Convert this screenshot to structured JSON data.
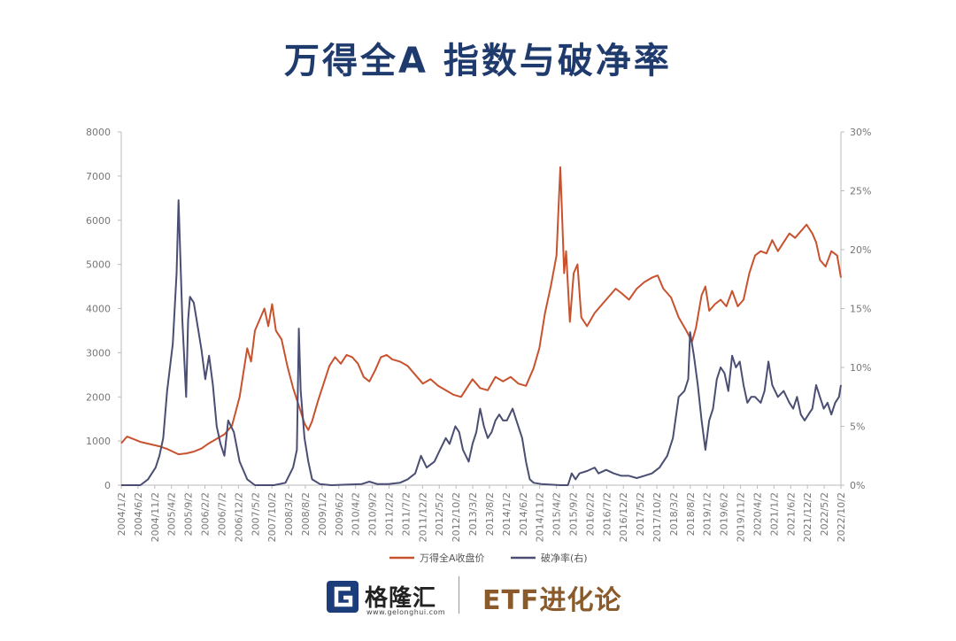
{
  "title": "万得全A 指数与破净率",
  "footer": {
    "logo_name": "格隆汇",
    "logo_url": "www.gelonghui.com",
    "brand": "ETF进化论"
  },
  "colors": {
    "index": "#c8522e",
    "ratio": "#4a4e72",
    "title": "#1f3b6e",
    "axis": "#bbbbbb",
    "brand": "#8a5a2b"
  },
  "icons": {
    "logo": "g-letter-icon"
  },
  "chart_data": {
    "type": "line",
    "title": "万得全A 指数与破净率",
    "grid": false,
    "legend_position": "bottom-center",
    "left_axis": {
      "min": 0,
      "max": 8000,
      "ticks": [
        "0",
        "1000",
        "2000",
        "3000",
        "4000",
        "5000",
        "6000",
        "7000",
        "8000"
      ]
    },
    "right_axis": {
      "min": 0,
      "max": 30,
      "ticks": [
        "0%",
        "5%",
        "10%",
        "15%",
        "20%",
        "25%",
        "30%"
      ]
    },
    "x_ticks": [
      "2004/1/2",
      "2004/6/2",
      "2004/11/2",
      "2005/4/2",
      "2005/9/2",
      "2006/2/2",
      "2006/7/2",
      "2006/12/2",
      "2007/5/2",
      "2007/10/2",
      "2008/3/2",
      "2008/8/2",
      "2009/1/2",
      "2009/6/2",
      "2010/4/2",
      "2010/9/2",
      "2011/2/2",
      "2011/7/2",
      "2011/12/2",
      "2012/5/2",
      "2012/10/2",
      "2013/3/2",
      "2013/8/2",
      "2014/1/2",
      "2014/6/2",
      "2014/11/2",
      "2015/4/2",
      "2015/9/2",
      "2016/2/2",
      "2016/7/2",
      "2016/12/2",
      "2017/5/2",
      "2017/10/2",
      "2018/3/2",
      "2018/8/2",
      "2019/1/2",
      "2019/6/2",
      "2019/11/2",
      "2020/4/2",
      "2021/1/2",
      "2021/6/2",
      "2021/12/2",
      "2022/5/2",
      "2022/10/2"
    ],
    "series": [
      {
        "name": "万得全A收盘价",
        "axis": "left",
        "points": [
          [
            2004.0,
            950
          ],
          [
            2004.15,
            1100
          ],
          [
            2004.3,
            1050
          ],
          [
            2004.5,
            980
          ],
          [
            2004.8,
            920
          ],
          [
            2005.0,
            880
          ],
          [
            2005.2,
            820
          ],
          [
            2005.4,
            740
          ],
          [
            2005.5,
            700
          ],
          [
            2005.7,
            720
          ],
          [
            2005.9,
            760
          ],
          [
            2006.1,
            830
          ],
          [
            2006.3,
            950
          ],
          [
            2006.5,
            1050
          ],
          [
            2006.7,
            1150
          ],
          [
            2006.9,
            1350
          ],
          [
            2007.1,
            2000
          ],
          [
            2007.3,
            3100
          ],
          [
            2007.4,
            2800
          ],
          [
            2007.5,
            3500
          ],
          [
            2007.65,
            3800
          ],
          [
            2007.75,
            4000
          ],
          [
            2007.85,
            3600
          ],
          [
            2007.95,
            4100
          ],
          [
            2008.05,
            3500
          ],
          [
            2008.2,
            3300
          ],
          [
            2008.35,
            2700
          ],
          [
            2008.5,
            2200
          ],
          [
            2008.65,
            1800
          ],
          [
            2008.8,
            1400
          ],
          [
            2008.9,
            1250
          ],
          [
            2009.0,
            1450
          ],
          [
            2009.15,
            1900
          ],
          [
            2009.3,
            2300
          ],
          [
            2009.45,
            2700
          ],
          [
            2009.6,
            2900
          ],
          [
            2009.75,
            2750
          ],
          [
            2009.9,
            2950
          ],
          [
            2010.05,
            2900
          ],
          [
            2010.2,
            2750
          ],
          [
            2010.35,
            2450
          ],
          [
            2010.5,
            2350
          ],
          [
            2010.65,
            2600
          ],
          [
            2010.8,
            2900
          ],
          [
            2010.95,
            2950
          ],
          [
            2011.1,
            2850
          ],
          [
            2011.3,
            2800
          ],
          [
            2011.5,
            2700
          ],
          [
            2011.7,
            2500
          ],
          [
            2011.9,
            2300
          ],
          [
            2012.1,
            2400
          ],
          [
            2012.3,
            2250
          ],
          [
            2012.5,
            2150
          ],
          [
            2012.7,
            2050
          ],
          [
            2012.9,
            2000
          ],
          [
            2013.05,
            2200
          ],
          [
            2013.2,
            2400
          ],
          [
            2013.4,
            2200
          ],
          [
            2013.6,
            2150
          ],
          [
            2013.8,
            2450
          ],
          [
            2014.0,
            2350
          ],
          [
            2014.2,
            2450
          ],
          [
            2014.4,
            2300
          ],
          [
            2014.6,
            2250
          ],
          [
            2014.8,
            2650
          ],
          [
            2014.95,
            3100
          ],
          [
            2015.1,
            3900
          ],
          [
            2015.25,
            4500
          ],
          [
            2015.4,
            5200
          ],
          [
            2015.45,
            6200
          ],
          [
            2015.5,
            7200
          ],
          [
            2015.55,
            6000
          ],
          [
            2015.6,
            4800
          ],
          [
            2015.65,
            5300
          ],
          [
            2015.75,
            3700
          ],
          [
            2015.85,
            4800
          ],
          [
            2015.95,
            5000
          ],
          [
            2016.05,
            3800
          ],
          [
            2016.2,
            3600
          ],
          [
            2016.4,
            3900
          ],
          [
            2016.6,
            4100
          ],
          [
            2016.8,
            4300
          ],
          [
            2016.95,
            4450
          ],
          [
            2017.1,
            4350
          ],
          [
            2017.3,
            4200
          ],
          [
            2017.5,
            4450
          ],
          [
            2017.7,
            4600
          ],
          [
            2017.9,
            4700
          ],
          [
            2018.05,
            4750
          ],
          [
            2018.2,
            4450
          ],
          [
            2018.4,
            4250
          ],
          [
            2018.6,
            3800
          ],
          [
            2018.8,
            3500
          ],
          [
            2018.95,
            3250
          ],
          [
            2019.05,
            3550
          ],
          [
            2019.2,
            4300
          ],
          [
            2019.3,
            4500
          ],
          [
            2019.4,
            3950
          ],
          [
            2019.55,
            4100
          ],
          [
            2019.7,
            4200
          ],
          [
            2019.85,
            4050
          ],
          [
            2020.0,
            4400
          ],
          [
            2020.15,
            4050
          ],
          [
            2020.3,
            4200
          ],
          [
            2020.45,
            4800
          ],
          [
            2020.6,
            5200
          ],
          [
            2020.75,
            5300
          ],
          [
            2020.9,
            5250
          ],
          [
            2021.05,
            5550
          ],
          [
            2021.2,
            5300
          ],
          [
            2021.35,
            5500
          ],
          [
            2021.5,
            5700
          ],
          [
            2021.65,
            5600
          ],
          [
            2021.8,
            5750
          ],
          [
            2021.95,
            5900
          ],
          [
            2022.1,
            5700
          ],
          [
            2022.2,
            5500
          ],
          [
            2022.3,
            5100
          ],
          [
            2022.45,
            4950
          ],
          [
            2022.6,
            5300
          ],
          [
            2022.75,
            5200
          ],
          [
            2022.85,
            4700
          ]
        ]
      },
      {
        "name": "破净率(右)",
        "axis": "right",
        "points": [
          [
            2004.0,
            0
          ],
          [
            2004.5,
            0
          ],
          [
            2004.7,
            0.5
          ],
          [
            2004.9,
            1.5
          ],
          [
            2005.0,
            2.5
          ],
          [
            2005.1,
            4.0
          ],
          [
            2005.2,
            8.0
          ],
          [
            2005.35,
            12.0
          ],
          [
            2005.45,
            18.0
          ],
          [
            2005.5,
            24.2
          ],
          [
            2005.6,
            14.0
          ],
          [
            2005.7,
            7.5
          ],
          [
            2005.75,
            14.0
          ],
          [
            2005.8,
            16.0
          ],
          [
            2005.9,
            15.5
          ],
          [
            2006.0,
            13.5
          ],
          [
            2006.1,
            11.5
          ],
          [
            2006.2,
            9.0
          ],
          [
            2006.3,
            11.0
          ],
          [
            2006.4,
            8.5
          ],
          [
            2006.5,
            5.0
          ],
          [
            2006.6,
            3.5
          ],
          [
            2006.7,
            2.5
          ],
          [
            2006.8,
            5.5
          ],
          [
            2006.95,
            4.5
          ],
          [
            2007.1,
            2.0
          ],
          [
            2007.3,
            0.5
          ],
          [
            2007.5,
            0
          ],
          [
            2008.0,
            0
          ],
          [
            2008.3,
            0.2
          ],
          [
            2008.5,
            1.5
          ],
          [
            2008.6,
            3.0
          ],
          [
            2008.65,
            13.3
          ],
          [
            2008.7,
            8.0
          ],
          [
            2008.8,
            4.0
          ],
          [
            2008.9,
            2.0
          ],
          [
            2009.0,
            0.5
          ],
          [
            2009.2,
            0.1
          ],
          [
            2009.5,
            0
          ],
          [
            2010.3,
            0.1
          ],
          [
            2010.5,
            0.3
          ],
          [
            2010.7,
            0.1
          ],
          [
            2011.0,
            0.1
          ],
          [
            2011.3,
            0.2
          ],
          [
            2011.5,
            0.5
          ],
          [
            2011.7,
            1.0
          ],
          [
            2011.85,
            2.5
          ],
          [
            2012.0,
            1.5
          ],
          [
            2012.2,
            2.0
          ],
          [
            2012.35,
            3.0
          ],
          [
            2012.5,
            4.0
          ],
          [
            2012.6,
            3.5
          ],
          [
            2012.75,
            5.0
          ],
          [
            2012.85,
            4.5
          ],
          [
            2012.95,
            3.0
          ],
          [
            2013.1,
            2.0
          ],
          [
            2013.2,
            3.5
          ],
          [
            2013.3,
            4.5
          ],
          [
            2013.4,
            6.5
          ],
          [
            2013.5,
            5.0
          ],
          [
            2013.6,
            4.0
          ],
          [
            2013.7,
            4.5
          ],
          [
            2013.8,
            5.5
          ],
          [
            2013.9,
            6.0
          ],
          [
            2014.0,
            5.5
          ],
          [
            2014.1,
            5.5
          ],
          [
            2014.25,
            6.5
          ],
          [
            2014.35,
            5.5
          ],
          [
            2014.5,
            4.0
          ],
          [
            2014.6,
            2.0
          ],
          [
            2014.7,
            0.5
          ],
          [
            2014.8,
            0.2
          ],
          [
            2015.0,
            0.1
          ],
          [
            2015.5,
            0
          ],
          [
            2015.7,
            0
          ],
          [
            2015.8,
            1.0
          ],
          [
            2015.9,
            0.5
          ],
          [
            2016.0,
            1.0
          ],
          [
            2016.2,
            1.2
          ],
          [
            2016.4,
            1.5
          ],
          [
            2016.5,
            1.0
          ],
          [
            2016.7,
            1.3
          ],
          [
            2016.9,
            1.0
          ],
          [
            2017.1,
            0.8
          ],
          [
            2017.3,
            0.8
          ],
          [
            2017.5,
            0.6
          ],
          [
            2017.7,
            0.8
          ],
          [
            2017.9,
            1.0
          ],
          [
            2018.1,
            1.5
          ],
          [
            2018.3,
            2.5
          ],
          [
            2018.45,
            4.0
          ],
          [
            2018.6,
            7.5
          ],
          [
            2018.75,
            8.0
          ],
          [
            2018.85,
            9.0
          ],
          [
            2018.9,
            13.0
          ],
          [
            2019.0,
            11.0
          ],
          [
            2019.1,
            8.5
          ],
          [
            2019.2,
            5.5
          ],
          [
            2019.3,
            3.0
          ],
          [
            2019.4,
            5.5
          ],
          [
            2019.5,
            6.5
          ],
          [
            2019.6,
            9.0
          ],
          [
            2019.7,
            10.0
          ],
          [
            2019.8,
            9.5
          ],
          [
            2019.9,
            8.0
          ],
          [
            2020.0,
            11.0
          ],
          [
            2020.1,
            10.0
          ],
          [
            2020.2,
            10.5
          ],
          [
            2020.3,
            8.5
          ],
          [
            2020.4,
            7.0
          ],
          [
            2020.5,
            7.5
          ],
          [
            2020.6,
            7.5
          ],
          [
            2020.75,
            7.0
          ],
          [
            2020.85,
            8.0
          ],
          [
            2020.95,
            10.5
          ],
          [
            2021.05,
            8.5
          ],
          [
            2021.2,
            7.5
          ],
          [
            2021.35,
            8.0
          ],
          [
            2021.5,
            7.0
          ],
          [
            2021.6,
            6.5
          ],
          [
            2021.7,
            7.5
          ],
          [
            2021.8,
            6.0
          ],
          [
            2021.9,
            5.5
          ],
          [
            2022.0,
            6.0
          ],
          [
            2022.1,
            6.5
          ],
          [
            2022.2,
            8.5
          ],
          [
            2022.3,
            7.5
          ],
          [
            2022.4,
            6.5
          ],
          [
            2022.5,
            7.0
          ],
          [
            2022.6,
            6.0
          ],
          [
            2022.7,
            7.0
          ],
          [
            2022.8,
            7.5
          ],
          [
            2022.85,
            8.5
          ]
        ]
      }
    ]
  }
}
